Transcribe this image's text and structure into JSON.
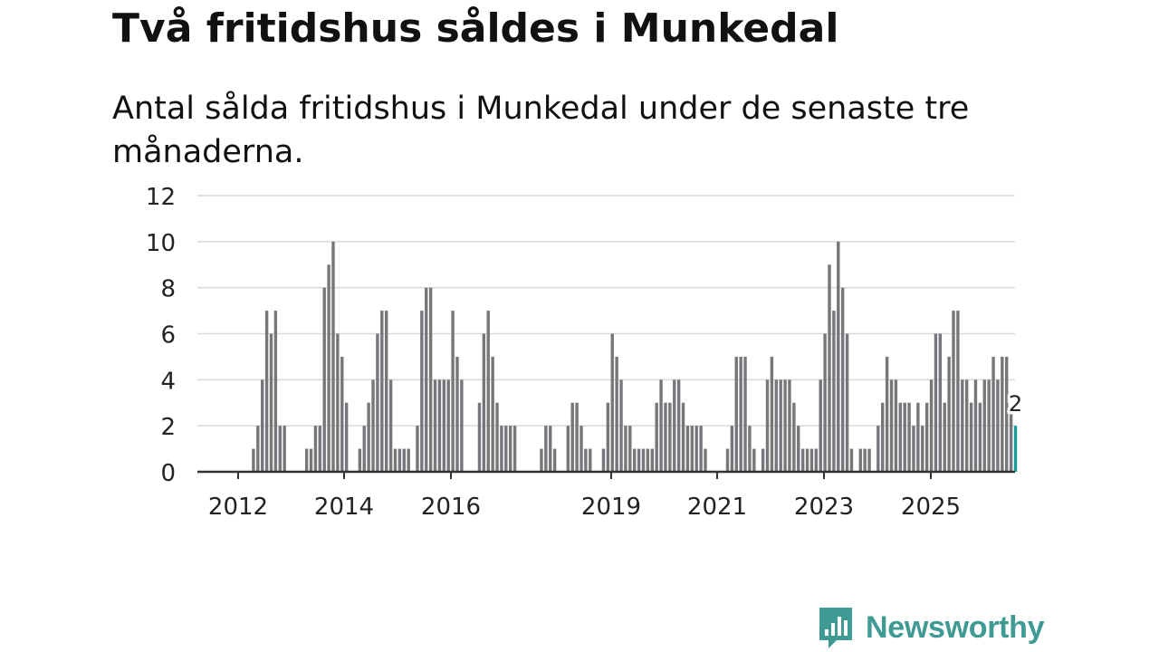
{
  "header": {
    "title": "Två fritidshus såldes i Munkedal",
    "subtitle": "Antal sålda fritidshus i Munkedal under de senaste tre månaderna."
  },
  "brand": {
    "name": "Newsworthy",
    "color": "#3f9a94"
  },
  "chart_data": {
    "type": "bar",
    "title": "Två fritidshus såldes i Munkedal",
    "subtitle": "Antal sålda fritidshus i Munkedal under de senaste tre månaderna.",
    "xlabel": "",
    "ylabel": "",
    "ylim": [
      0,
      12
    ],
    "yticks": [
      "0",
      "2",
      "4",
      "6",
      "8",
      "10",
      "12"
    ],
    "xticks": [
      "2012",
      "2014",
      "2016",
      "2019",
      "2021",
      "2023",
      "2025"
    ],
    "grid": true,
    "bar_color": "#77767a",
    "highlight_color": "#1a9e9b",
    "highlight_label": "2",
    "series": [
      {
        "name": "Antal sålda fritidshus",
        "values": [
          0,
          0,
          0,
          0,
          0,
          0,
          0,
          0,
          0,
          0,
          0,
          0,
          1,
          2,
          4,
          7,
          6,
          7,
          2,
          2,
          0,
          0,
          0,
          0,
          1,
          1,
          2,
          2,
          8,
          9,
          10,
          6,
          5,
          3,
          0,
          0,
          1,
          2,
          3,
          4,
          6,
          7,
          7,
          4,
          1,
          1,
          1,
          1,
          0,
          2,
          7,
          8,
          8,
          4,
          4,
          4,
          4,
          7,
          5,
          4,
          0,
          0,
          0,
          3,
          6,
          7,
          5,
          3,
          2,
          2,
          2,
          2,
          0,
          0,
          0,
          0,
          0,
          1,
          2,
          2,
          1,
          0,
          0,
          2,
          3,
          3,
          2,
          1,
          1,
          0,
          0,
          1,
          3,
          6,
          5,
          4,
          2,
          2,
          1,
          1,
          1,
          1,
          1,
          3,
          4,
          3,
          3,
          4,
          4,
          3,
          2,
          2,
          2,
          2,
          1,
          0,
          0,
          0,
          0,
          1,
          2,
          5,
          5,
          5,
          2,
          1,
          0,
          1,
          4,
          5,
          4,
          4,
          4,
          4,
          3,
          2,
          1,
          1,
          1,
          1,
          4,
          6,
          9,
          7,
          10,
          8,
          6,
          1,
          0,
          1,
          1,
          1,
          0,
          2,
          3,
          5,
          4,
          4,
          3,
          3,
          3,
          2,
          3,
          2,
          3,
          4,
          6,
          6,
          3,
          5,
          7,
          7,
          4,
          4,
          3,
          4,
          3,
          4,
          4,
          5,
          4,
          5,
          5,
          2.5,
          2
        ]
      }
    ]
  }
}
